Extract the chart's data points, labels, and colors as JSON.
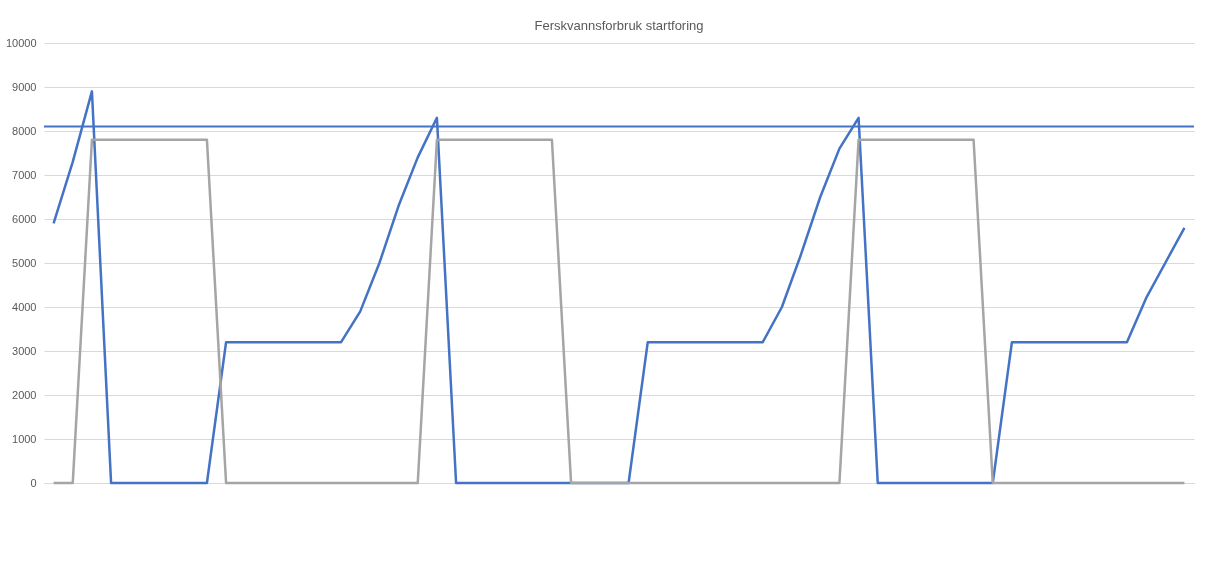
{
  "chart_data": {
    "type": "line",
    "title": "Ferskvannsforbruk startforing",
    "categories": [
      null,
      null,
      null,
      null,
      null,
      null,
      null,
      null,
      null,
      null,
      null,
      null,
      null,
      null,
      null,
      null,
      null,
      null,
      null,
      null,
      null,
      null,
      null,
      null,
      null,
      null,
      null,
      null,
      null,
      null,
      null,
      null,
      null,
      null,
      null,
      null,
      null,
      null,
      null,
      null,
      null,
      null,
      null,
      null,
      null,
      null,
      null,
      null,
      null,
      null,
      null,
      null,
      null,
      null,
      null,
      null,
      null,
      null,
      null,
      null
    ],
    "series": [
      {
        "color": "#4472c4",
        "values": [
          5900,
          7300,
          8900,
          0,
          0,
          0,
          0,
          0,
          0,
          3200,
          3200,
          3200,
          3200,
          3200,
          3200,
          3200,
          3900,
          5000,
          6300,
          7400,
          8300,
          0,
          0,
          0,
          0,
          0,
          0,
          0,
          0,
          0,
          0,
          3200,
          3200,
          3200,
          3200,
          3200,
          3200,
          3200,
          4000,
          5200,
          6500,
          7600,
          8300,
          0,
          0,
          0,
          0,
          0,
          0,
          0,
          3200,
          3200,
          3200,
          3200,
          3200,
          3200,
          3200,
          4200,
          5000,
          5800
        ]
      },
      {
        "color": "#a5a5a5",
        "values": [
          0,
          0,
          7800,
          7800,
          7800,
          7800,
          7800,
          7800,
          7800,
          0,
          0,
          0,
          0,
          0,
          0,
          0,
          0,
          0,
          0,
          0,
          7800,
          7800,
          7800,
          7800,
          7800,
          7800,
          7800,
          0,
          0,
          0,
          0,
          0,
          0,
          0,
          0,
          0,
          0,
          0,
          0,
          0,
          0,
          0,
          7800,
          7800,
          7800,
          7800,
          7800,
          7800,
          7800,
          0,
          0,
          0,
          0,
          0,
          0,
          0,
          0,
          0,
          0,
          0
        ]
      }
    ],
    "ref_lines": [
      {
        "axis": "y",
        "value": 8100,
        "color": "#4472c4"
      }
    ],
    "ylim": [
      0,
      10000
    ],
    "yticks": [
      0,
      1000,
      2000,
      3000,
      4000,
      5000,
      6000,
      7000,
      8000,
      9000,
      10000
    ],
    "grid": "y"
  }
}
